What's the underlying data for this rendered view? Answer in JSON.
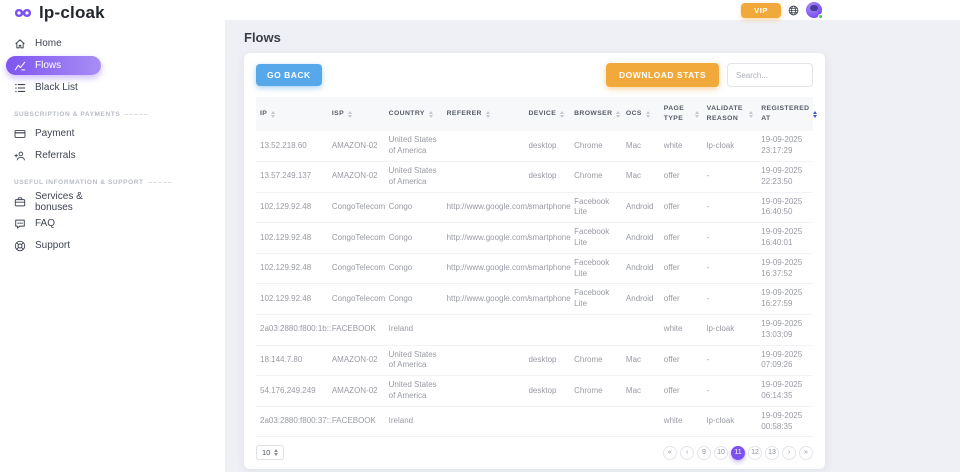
{
  "brand": {
    "name": "lp-cloak"
  },
  "header": {
    "vip_label": "VIP"
  },
  "sidebar": {
    "sections": [
      {
        "label": "",
        "items": [
          {
            "label": "Home",
            "icon": "home-icon",
            "active": false
          },
          {
            "label": "Flows",
            "icon": "flows-icon",
            "active": true
          },
          {
            "label": "Black List",
            "icon": "blacklist-icon",
            "active": false
          }
        ]
      },
      {
        "label": "SUBSCRIPTION & PAYMENTS",
        "items": [
          {
            "label": "Payment",
            "icon": "payment-icon",
            "active": false
          },
          {
            "label": "Referrals",
            "icon": "referrals-icon",
            "active": false
          }
        ]
      },
      {
        "label": "USEFUL INFORMATION & SUPPORT",
        "items": [
          {
            "label": "Services & bonuses",
            "icon": "services-icon",
            "active": false
          },
          {
            "label": "FAQ",
            "icon": "faq-icon",
            "active": false
          },
          {
            "label": "Support",
            "icon": "support-icon",
            "active": false
          }
        ]
      }
    ]
  },
  "main": {
    "title": "Flows",
    "toolbar": {
      "go_back": "GO BACK",
      "download_stats": "DOWNLOAD STATS",
      "search_placeholder": "Search...",
      "search_value": ""
    },
    "table": {
      "columns": [
        {
          "label": "IP",
          "sort_active": false
        },
        {
          "label": "ISP",
          "sort_active": false
        },
        {
          "label": "COUNTRY",
          "sort_active": false
        },
        {
          "label": "REFERER",
          "sort_active": false
        },
        {
          "label": "DEVICE",
          "sort_active": false
        },
        {
          "label": "BROWSER",
          "sort_active": false
        },
        {
          "label": "OCS",
          "sort_active": false
        },
        {
          "label": "PAGE TYPE",
          "sort_active": false
        },
        {
          "label": "VALIDATE REASON",
          "sort_active": false
        },
        {
          "label": "REGISTERED AT",
          "sort_active": true
        }
      ],
      "rows": [
        {
          "ip": "13.52.218.60",
          "isp": "AMAZON-02",
          "country": "United States of America",
          "referer": "",
          "device": "desktop",
          "browser": "Chrome",
          "ocs": "Mac",
          "page_type": "white",
          "validate_reason": "lp-cloak",
          "registered_at": "19-09-2025 23:17:29"
        },
        {
          "ip": "13.57.249.137",
          "isp": "AMAZON-02",
          "country": "United States of America",
          "referer": "",
          "device": "desktop",
          "browser": "Chrome",
          "ocs": "Mac",
          "page_type": "offer",
          "validate_reason": "-",
          "registered_at": "19-09-2025 22:23:50"
        },
        {
          "ip": "102.129.92.48",
          "isp": "CongoTelecom",
          "country": "Congo",
          "referer": "http://www.google.com/",
          "device": "smartphone",
          "browser": "Facebook Lite",
          "ocs": "Android",
          "page_type": "offer",
          "validate_reason": "-",
          "registered_at": "19-09-2025 16:40:50"
        },
        {
          "ip": "102.129.92.48",
          "isp": "CongoTelecom",
          "country": "Congo",
          "referer": "http://www.google.com/",
          "device": "smartphone",
          "browser": "Facebook Lite",
          "ocs": "Android",
          "page_type": "offer",
          "validate_reason": "-",
          "registered_at": "19-09-2025 16:40:01"
        },
        {
          "ip": "102.129.92.48",
          "isp": "CongoTelecom",
          "country": "Congo",
          "referer": "http://www.google.com/",
          "device": "smartphone",
          "browser": "Facebook Lite",
          "ocs": "Android",
          "page_type": "offer",
          "validate_reason": "-",
          "registered_at": "19-09-2025 16:37:52"
        },
        {
          "ip": "102.129.92.48",
          "isp": "CongoTelecom",
          "country": "Congo",
          "referer": "http://www.google.com/",
          "device": "smartphone",
          "browser": "Facebook Lite",
          "ocs": "Android",
          "page_type": "offer",
          "validate_reason": "-",
          "registered_at": "19-09-2025 16:27:59"
        },
        {
          "ip": "2a03:2880:f800:1b::",
          "isp": "FACEBOOK",
          "country": "Ireland",
          "referer": "",
          "device": "",
          "browser": "",
          "ocs": "",
          "page_type": "white",
          "validate_reason": "lp-cloak",
          "registered_at": "19-09-2025 13:03:09"
        },
        {
          "ip": "18.144.7.80",
          "isp": "AMAZON-02",
          "country": "United States of America",
          "referer": "",
          "device": "desktop",
          "browser": "Chrome",
          "ocs": "Mac",
          "page_type": "offer",
          "validate_reason": "-",
          "registered_at": "19-09-2025 07:09:26"
        },
        {
          "ip": "54.176.249.249",
          "isp": "AMAZON-02",
          "country": "United States of America",
          "referer": "",
          "device": "desktop",
          "browser": "Chrome",
          "ocs": "Mac",
          "page_type": "offer",
          "validate_reason": "-",
          "registered_at": "19-09-2025 06:14:35"
        },
        {
          "ip": "2a03:2880:f800:37::",
          "isp": "FACEBOOK",
          "country": "Ireland",
          "referer": "",
          "device": "",
          "browser": "",
          "ocs": "",
          "page_type": "white",
          "validate_reason": "lp-cloak",
          "registered_at": "19-09-2025 00:58:35"
        }
      ]
    },
    "pagination": {
      "page_size": "10",
      "pages": [
        "9",
        "10",
        "11",
        "12",
        "13"
      ],
      "active_page": "11",
      "nav": {
        "first": "«",
        "prev": "‹",
        "next": "›",
        "last": "»"
      }
    }
  }
}
